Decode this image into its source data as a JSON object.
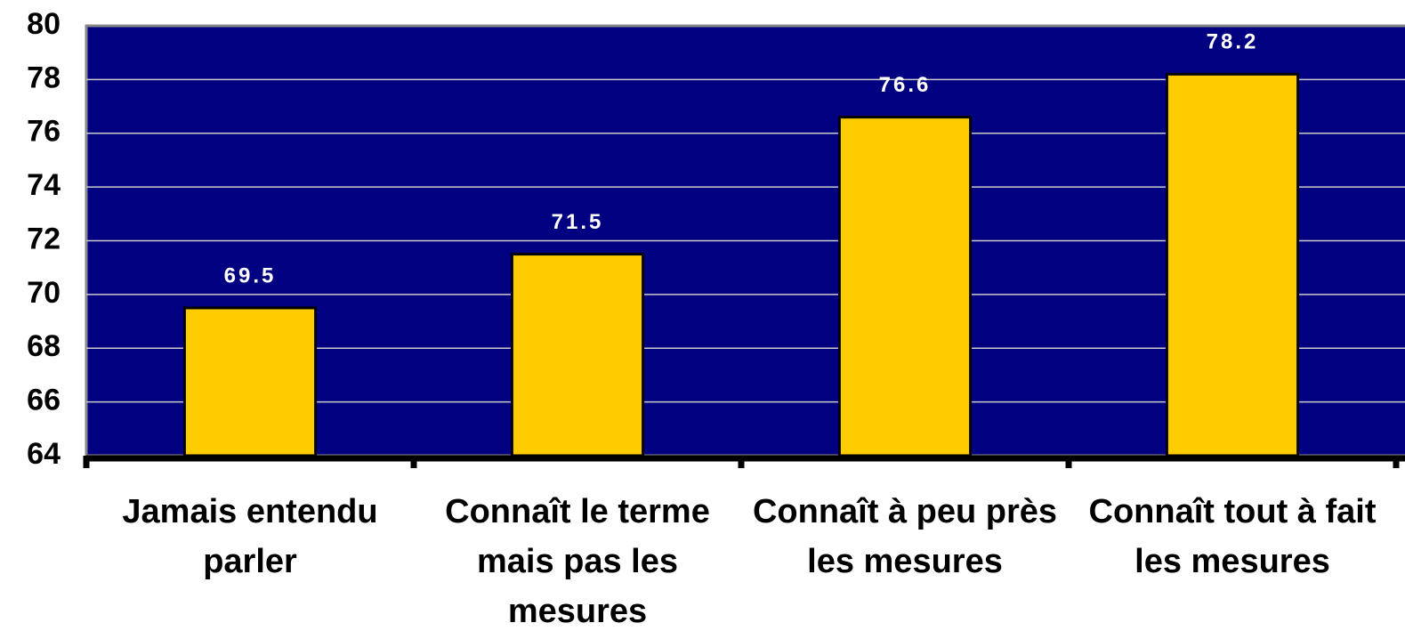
{
  "chart_data": {
    "type": "bar",
    "categories": [
      "Jamais entendu parler",
      "Connaît le terme mais pas les mesures",
      "Connaît à peu près les mesures",
      "Connaît tout à fait les mesures"
    ],
    "values": [
      69.5,
      71.5,
      76.6,
      78.2
    ],
    "color": "#ffcc00",
    "background": "#000080",
    "ylim": [
      64,
      80
    ],
    "yticks": [
      64,
      66,
      68,
      70,
      72,
      74,
      76,
      78,
      80
    ],
    "grid": true
  }
}
